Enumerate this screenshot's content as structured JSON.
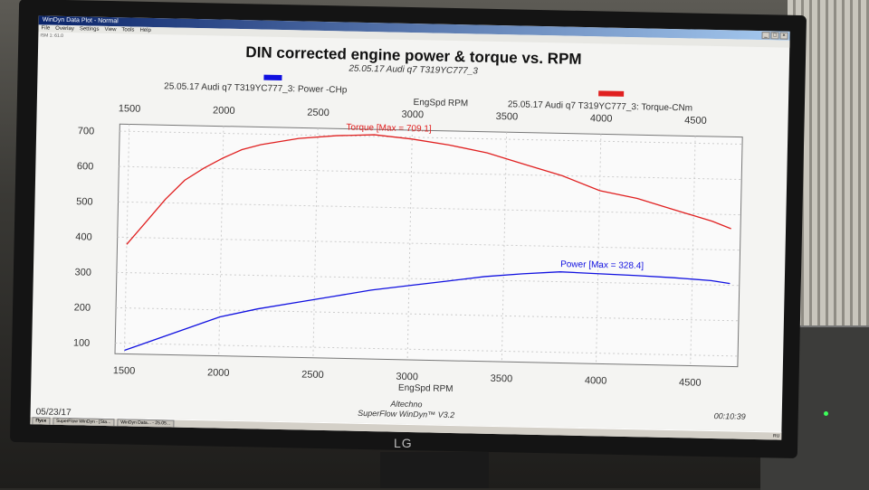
{
  "window": {
    "title": "WinDyn Data Plot - Normal",
    "menu": [
      "File",
      "Overlay",
      "Settings",
      "View",
      "Tools",
      "Help"
    ],
    "status": "ISM 1: 61.0"
  },
  "plot": {
    "title": "DIN corrected engine power & torque vs. RPM",
    "subtitle": "25.05.17 Audi q7 T319YC777_3",
    "legend_power": "25.05.17 Audi q7 T319YC777_3: Power -CHp",
    "legend_torque": "25.05.17 Audi q7 T319YC777_3: Torque-CNm",
    "power_color": "#1010e0",
    "torque_color": "#e02020",
    "annotation_power": "Power  [Max = 328.4]",
    "annotation_torque": "Torque [Max = 709.1]"
  },
  "chart_data": {
    "type": "line",
    "xlabel": "EngSpd RPM",
    "xlabel_top": "EngSpd RPM",
    "xlim": [
      1450,
      4750
    ],
    "ylim": [
      70,
      720
    ],
    "x_ticks": [
      "1500",
      "2000",
      "2500",
      "3000",
      "3500",
      "4000",
      "4500"
    ],
    "y_ticks": [
      "100",
      "200",
      "300",
      "400",
      "500",
      "600",
      "700"
    ],
    "grid": true,
    "series": [
      {
        "name": "25.05.17 Audi q7 T319YC777_3: Torque-CNm",
        "color": "#e02020",
        "x": [
          1500,
          1600,
          1700,
          1800,
          1900,
          2000,
          2100,
          2200,
          2400,
          2600,
          2800,
          3000,
          3200,
          3400,
          3600,
          3800,
          4000,
          4200,
          4400,
          4600,
          4700
        ],
        "y": [
          380,
          445,
          510,
          565,
          600,
          630,
          655,
          670,
          690,
          700,
          705,
          695,
          680,
          660,
          630,
          600,
          560,
          540,
          510,
          480,
          460
        ]
      },
      {
        "name": "25.05.17 Audi q7 T319YC777_3: Power -CHp",
        "color": "#1010e0",
        "x": [
          1500,
          1600,
          1700,
          1800,
          1900,
          2000,
          2200,
          2400,
          2600,
          2800,
          3000,
          3200,
          3400,
          3600,
          3800,
          4000,
          4200,
          4400,
          4600,
          4700
        ],
        "y": [
          80,
          100,
          120,
          140,
          160,
          180,
          205,
          225,
          245,
          265,
          280,
          295,
          310,
          320,
          328,
          325,
          322,
          318,
          312,
          305
        ]
      }
    ]
  },
  "footer": {
    "date": "05/23/17",
    "company": "Altechno",
    "product": "SuperFlow WinDyn™ V3.2",
    "time": "00:10:39"
  },
  "taskbar": {
    "start": "Пуск",
    "tasks": [
      "SuperFlow WinDyn - [Sta...",
      "WinDyn Data... - 25.05..."
    ],
    "tray": "RU"
  },
  "monitor_brand": "LG"
}
